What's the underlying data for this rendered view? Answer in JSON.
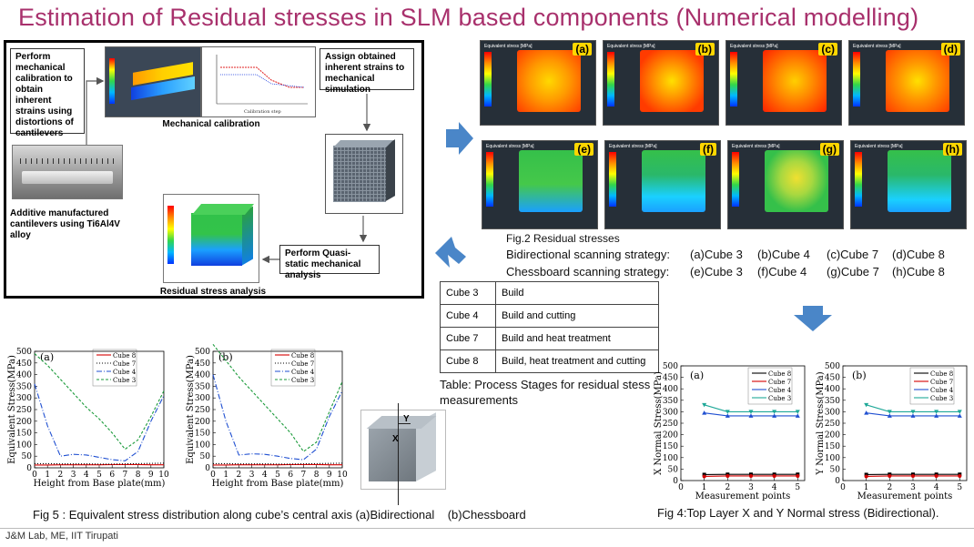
{
  "title": "Estimation of Residual stresses in SLM based components (Numerical modelling)",
  "flow": {
    "step1": "Perform mechanical calibration to obtain inherent strains using distortions of cantilevers",
    "step2": "Assign obtained inherent strains to mechanical simulation",
    "step3": "Perform Quasi-static mechanical analysis",
    "caption_calib": "Mechanical calibration",
    "caption_residual": "Residual stress analysis",
    "caption_cantilever": "Additive manufactured cantilevers using Ti6Al4V alloy",
    "calib_xlabel": "Calibration step"
  },
  "fig2": {
    "panel_title": "Equivalent stress [MPa]",
    "labels": [
      "(a)",
      "(b)",
      "(c)",
      "(d)",
      "(e)",
      "(f)",
      "(g)",
      "(h)"
    ],
    "caption": "Fig.2 Residual stresses",
    "line1_label": "Bidirectional scanning strategy:",
    "line1_items": [
      "(a)Cube 3",
      "(b)Cube 4",
      "(c)Cube 7",
      "(d)Cube 8"
    ],
    "line2_label": "Chessboard scanning strategy:",
    "line2_items": [
      "(e)Cube 3",
      "(f)Cube 4",
      "(g)Cube 7",
      "(h)Cube 8"
    ]
  },
  "table": {
    "rows": [
      {
        "cube": "Cube 3",
        "stage": "Build"
      },
      {
        "cube": "Cube 4",
        "stage": "Build and cutting"
      },
      {
        "cube": "Cube 7",
        "stage": "Build and heat treatment"
      },
      {
        "cube": "Cube 8",
        "stage": "Build, heat treatment and cutting"
      }
    ],
    "caption": "Table: Process Stages for residual stess measurements"
  },
  "cube_axes": {
    "x": "X",
    "y": "Y"
  },
  "fig5_caption": "Fig 5 : Equivalent stress distribution along cube’s central axis (a)Bidirectional    (b)Chessboard",
  "fig4_caption": "Fig 4:Top Layer X and Y Normal stress (Bidirectional).",
  "footer": "J&M Lab, ME, IIT Tirupati",
  "colors": {
    "title": "#a8306c",
    "arrow": "#4a86c8"
  },
  "chart_data": [
    {
      "type": "line",
      "panel": "(a)",
      "xlabel": "Height from Base plate(mm)",
      "ylabel": "Equivalent Stress(MPa)",
      "xlim": [
        0,
        10
      ],
      "ylim": [
        0,
        500
      ],
      "xticks": [
        0,
        1,
        2,
        3,
        4,
        5,
        6,
        7,
        8,
        9,
        10
      ],
      "yticks": [
        0,
        50,
        100,
        150,
        200,
        250,
        300,
        350,
        400,
        450,
        500
      ],
      "series": [
        {
          "name": "Cube 8",
          "color": "#d40000",
          "dash": "",
          "x": [
            0,
            1,
            2,
            3,
            4,
            5,
            6,
            7,
            8,
            9,
            10
          ],
          "y": [
            12,
            12,
            13,
            13,
            13,
            13,
            14,
            14,
            14,
            13,
            13
          ]
        },
        {
          "name": "Cube 7",
          "color": "#000000",
          "dash": "1,2",
          "x": [
            0,
            1,
            2,
            3,
            4,
            5,
            6,
            7,
            8,
            9,
            10
          ],
          "y": [
            18,
            18,
            17,
            17,
            17,
            16,
            16,
            17,
            18,
            19,
            20
          ]
        },
        {
          "name": "Cube 4",
          "color": "#1f4fd1",
          "dash": "6,2,1,2",
          "x": [
            0,
            1,
            2,
            3,
            4,
            5,
            6,
            7,
            8,
            9,
            10
          ],
          "y": [
            360,
            180,
            50,
            58,
            55,
            45,
            35,
            30,
            70,
            200,
            310
          ]
        },
        {
          "name": "Cube 3",
          "color": "#1a9a3a",
          "dash": "3,2",
          "x": [
            0,
            1,
            2,
            3,
            4,
            5,
            6,
            7,
            8,
            9,
            10
          ],
          "y": [
            490,
            440,
            380,
            320,
            260,
            210,
            150,
            80,
            120,
            220,
            330
          ]
        }
      ]
    },
    {
      "type": "line",
      "panel": "(b)",
      "xlabel": "Height from Base plate(mm)",
      "ylabel": "Equivalent Stress(MPa)",
      "xlim": [
        0,
        10
      ],
      "ylim": [
        0,
        500
      ],
      "xticks": [
        0,
        1,
        2,
        3,
        4,
        5,
        6,
        7,
        8,
        9,
        10
      ],
      "yticks": [
        0,
        50,
        100,
        150,
        200,
        250,
        300,
        350,
        400,
        450,
        500
      ],
      "series": [
        {
          "name": "Cube 8",
          "color": "#d40000",
          "dash": "",
          "x": [
            0,
            1,
            2,
            3,
            4,
            5,
            6,
            7,
            8,
            9,
            10
          ],
          "y": [
            12,
            12,
            13,
            13,
            13,
            13,
            14,
            14,
            14,
            13,
            13
          ]
        },
        {
          "name": "Cube 7",
          "color": "#000000",
          "dash": "1,2",
          "x": [
            0,
            1,
            2,
            3,
            4,
            5,
            6,
            7,
            8,
            9,
            10
          ],
          "y": [
            18,
            18,
            17,
            17,
            17,
            16,
            16,
            17,
            18,
            19,
            20
          ]
        },
        {
          "name": "Cube 4",
          "color": "#1f4fd1",
          "dash": "6,2,1,2",
          "x": [
            0,
            1,
            2,
            3,
            4,
            5,
            6,
            7,
            8,
            9,
            10
          ],
          "y": [
            400,
            200,
            55,
            60,
            58,
            50,
            40,
            35,
            80,
            220,
            330
          ]
        },
        {
          "name": "Cube 3",
          "color": "#1a9a3a",
          "dash": "3,2",
          "x": [
            0,
            1,
            2,
            3,
            4,
            5,
            6,
            7,
            8,
            9,
            10
          ],
          "y": [
            530,
            460,
            390,
            330,
            270,
            210,
            150,
            70,
            110,
            240,
            370
          ]
        }
      ]
    },
    {
      "type": "line",
      "panel": "(a)",
      "xlabel": "Measurement points",
      "ylabel": "X Normal Stress(MPa)",
      "xlim": [
        0,
        5.3
      ],
      "ylim": [
        0,
        500
      ],
      "xticks": [
        0,
        1,
        2,
        3,
        4,
        5
      ],
      "yticks": [
        0,
        50,
        100,
        150,
        200,
        250,
        300,
        350,
        400,
        450,
        500
      ],
      "series": [
        {
          "name": "Cube 8",
          "color": "#000000",
          "marker": "square",
          "x": [
            1,
            2,
            3,
            4,
            5
          ],
          "y": [
            26,
            27,
            27,
            27,
            27
          ]
        },
        {
          "name": "Cube 7",
          "color": "#d40000",
          "marker": "circle",
          "x": [
            1,
            2,
            3,
            4,
            5
          ],
          "y": [
            18,
            20,
            20,
            20,
            20
          ]
        },
        {
          "name": "Cube 4",
          "color": "#1f4fd1",
          "marker": "triangle",
          "x": [
            1,
            2,
            3,
            4,
            5
          ],
          "y": [
            295,
            282,
            282,
            282,
            282
          ]
        },
        {
          "name": "Cube 3",
          "color": "#1fa898",
          "marker": "triangle-down",
          "x": [
            1,
            2,
            3,
            4,
            5
          ],
          "y": [
            330,
            300,
            300,
            300,
            300
          ]
        }
      ]
    },
    {
      "type": "line",
      "panel": "(b)",
      "xlabel": "Measurement points",
      "ylabel": "Y Normal Stress(MPa)",
      "xlim": [
        0,
        5.3
      ],
      "ylim": [
        0,
        500
      ],
      "xticks": [
        0,
        1,
        2,
        3,
        4,
        5
      ],
      "yticks": [
        0,
        50,
        100,
        150,
        200,
        250,
        300,
        350,
        400,
        450,
        500
      ],
      "series": [
        {
          "name": "Cube 8",
          "color": "#000000",
          "marker": "square",
          "x": [
            1,
            2,
            3,
            4,
            5
          ],
          "y": [
            26,
            27,
            27,
            27,
            27
          ]
        },
        {
          "name": "Cube 7",
          "color": "#d40000",
          "marker": "circle",
          "x": [
            1,
            2,
            3,
            4,
            5
          ],
          "y": [
            18,
            20,
            20,
            20,
            20
          ]
        },
        {
          "name": "Cube 4",
          "color": "#1f4fd1",
          "marker": "triangle",
          "x": [
            1,
            2,
            3,
            4,
            5
          ],
          "y": [
            295,
            282,
            282,
            282,
            282
          ]
        },
        {
          "name": "Cube 3",
          "color": "#1fa898",
          "marker": "triangle-down",
          "x": [
            1,
            2,
            3,
            4,
            5
          ],
          "y": [
            330,
            300,
            300,
            300,
            300
          ]
        }
      ]
    }
  ]
}
